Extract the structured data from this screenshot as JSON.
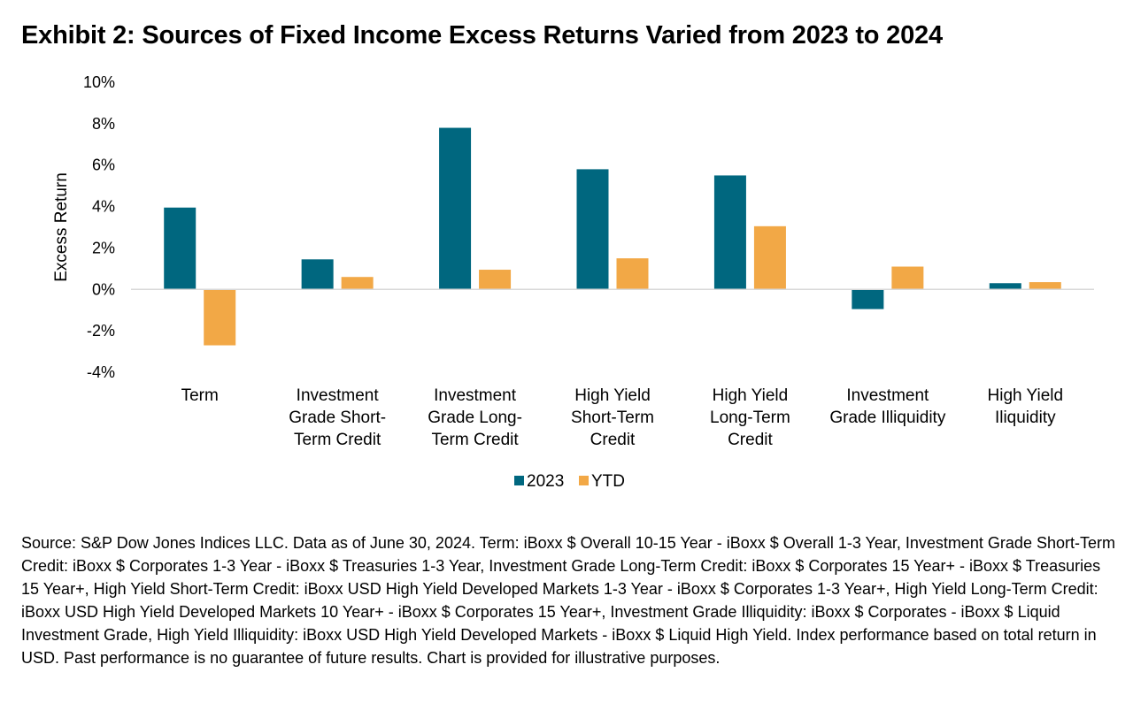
{
  "header": {
    "title": "Exhibit 2: Sources of Fixed Income Excess Returns Varied from 2023 to 2024"
  },
  "chart_data": {
    "type": "bar",
    "ylabel": "Excess Return",
    "xlabel": "",
    "ylim": [
      -4,
      10
    ],
    "yticks": [
      {
        "value": 10,
        "label": "10%"
      },
      {
        "value": 8,
        "label": "8%"
      },
      {
        "value": 6,
        "label": "6%"
      },
      {
        "value": 4,
        "label": "4%"
      },
      {
        "value": 2,
        "label": "2%"
      },
      {
        "value": 0,
        "label": "0%"
      },
      {
        "value": -2,
        "label": "-2%"
      },
      {
        "value": -4,
        "label": "-4%"
      }
    ],
    "grid": false,
    "legend_position": "bottom",
    "categories": [
      [
        "Term"
      ],
      [
        "Investment",
        "Grade Short-",
        "Term Credit"
      ],
      [
        "Investment",
        "Grade Long-",
        "Term Credit"
      ],
      [
        "High Yield",
        "Short-Term",
        "Credit"
      ],
      [
        "High Yield",
        "Long-Term",
        "Credit"
      ],
      [
        "Investment",
        "Grade Illiquidity"
      ],
      [
        "High Yield",
        "Iliquidity"
      ]
    ],
    "series": [
      {
        "name": "2023",
        "color": "#00677f",
        "values": [
          3.95,
          1.45,
          7.8,
          5.8,
          5.5,
          -0.95,
          0.3
        ]
      },
      {
        "name": "YTD",
        "color": "#f2a846",
        "values": [
          -2.7,
          0.6,
          0.95,
          1.5,
          3.05,
          1.1,
          0.35
        ]
      }
    ]
  },
  "source_note": "Source: S&P Dow Jones Indices LLC. Data as of June 30, 2024. Term: iBoxx $ Overall 10-15 Year - iBoxx $ Overall 1-3 Year, Investment Grade Short-Term Credit: iBoxx $ Corporates 1-3 Year - iBoxx $ Treasuries 1-3 Year, Investment Grade Long-Term Credit: iBoxx $ Corporates 15 Year+ - iBoxx $ Treasuries 15 Year+, High Yield Short-Term Credit: iBoxx USD High Yield Developed Markets 1-3 Year - iBoxx $ Corporates 1-3 Year+, High Yield Long-Term Credit: iBoxx USD High Yield Developed Markets 10 Year+ - iBoxx $ Corporates 15 Year+, Investment Grade Illiquidity: iBoxx $ Corporates - iBoxx $ Liquid Investment Grade, High Yield Illiquidity: iBoxx USD High Yield Developed Markets - iBoxx $ Liquid High Yield. Index performance based on total return in USD. Past performance is no guarantee of future results. Chart is provided for illustrative purposes."
}
